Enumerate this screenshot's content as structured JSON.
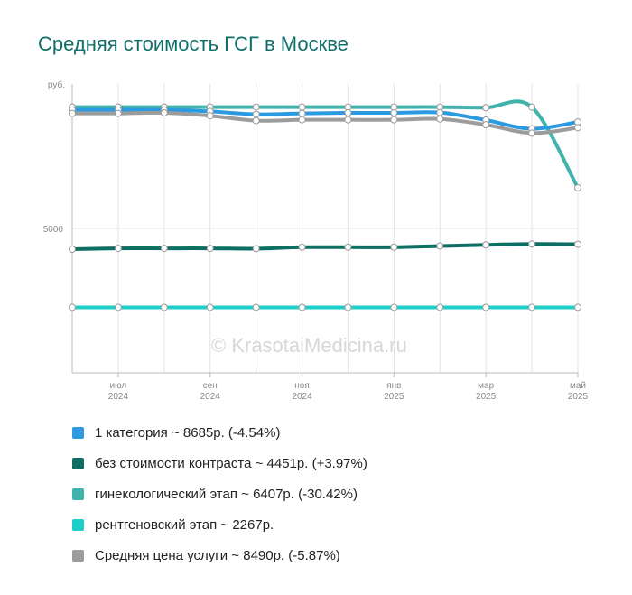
{
  "chart_data": {
    "type": "line",
    "title": "Средняя стоимость ГСГ в Москве",
    "y_unit": "руб.",
    "ylim": [
      0,
      10000
    ],
    "y_ticks": [
      5000
    ],
    "y_tick_labels": [
      "5000"
    ],
    "grid": "vertical",
    "legend_position": "bottom",
    "x": [
      "2024-06",
      "2024-07",
      "2024-08",
      "2024-09",
      "2024-10",
      "2024-11",
      "2024-12",
      "2025-01",
      "2025-02",
      "2025-03",
      "2025-04",
      "2025-05"
    ],
    "x_tick_labels": [
      {
        "month": "июл",
        "year": "2024",
        "index": 1
      },
      {
        "month": "сен",
        "year": "2024",
        "index": 3
      },
      {
        "month": "ноя",
        "year": "2024",
        "index": 5
      },
      {
        "month": "янв",
        "year": "2025",
        "index": 7
      },
      {
        "month": "мар",
        "year": "2025",
        "index": 9
      },
      {
        "month": "май",
        "year": "2025",
        "index": 11
      }
    ],
    "series": [
      {
        "name": "1 категория",
        "color": "#2b9ae0",
        "legend": "1 категория ~ 8685р. (-4.54%)",
        "values": [
          9100,
          9100,
          9100,
          9050,
          8950,
          8980,
          9000,
          9000,
          9010,
          8750,
          8450,
          8685
        ]
      },
      {
        "name": "без стоимости контраста",
        "color": "#0d6e63",
        "legend": "без стоимости контраста ~ 4451р. (+3.97%)",
        "values": [
          4280,
          4310,
          4310,
          4310,
          4300,
          4350,
          4350,
          4350,
          4390,
          4430,
          4460,
          4451
        ]
      },
      {
        "name": "гинекологический этап",
        "color": "#3fb3ac",
        "legend": "гинекологический этап ~ 6407р. (-30.42%)",
        "values": [
          9200,
          9200,
          9200,
          9200,
          9200,
          9200,
          9200,
          9200,
          9200,
          9180,
          9200,
          6407
        ]
      },
      {
        "name": "рентгеновский этап",
        "color": "#1ccfc8",
        "legend": "рентгеновский этап ~ 2267р.",
        "values": [
          2267,
          2267,
          2267,
          2267,
          2267,
          2267,
          2267,
          2267,
          2267,
          2267,
          2267,
          2267
        ]
      },
      {
        "name": "Средняя цена услуги",
        "color": "#9c9c9c",
        "legend": "Средняя цена услуги ~ 8490р. (-5.87%)",
        "values": [
          8980,
          8980,
          9000,
          8900,
          8730,
          8760,
          8760,
          8760,
          8790,
          8590,
          8300,
          8490
        ]
      }
    ]
  },
  "watermark": "© KrasotaiMedicina.ru"
}
